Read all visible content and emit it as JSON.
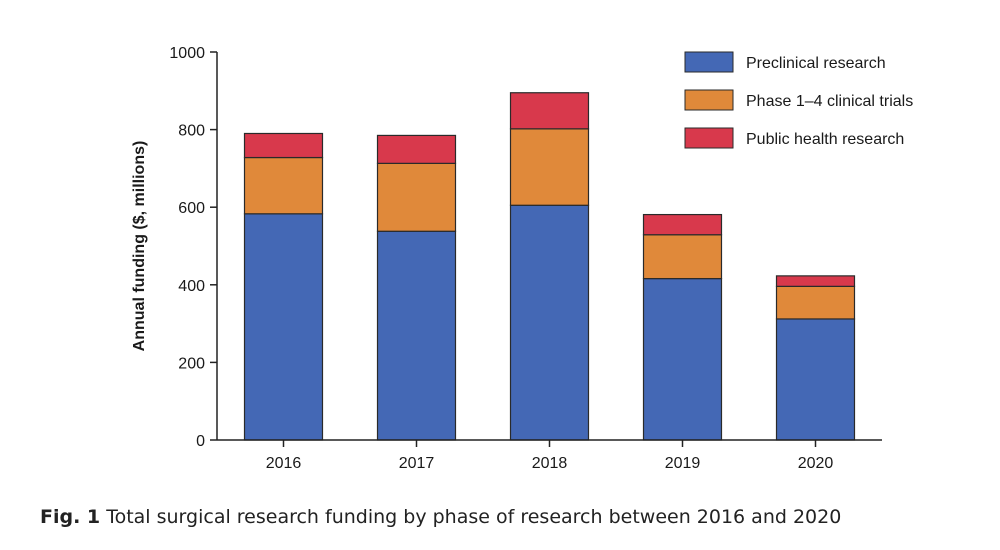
{
  "chart_data": {
    "type": "bar",
    "stacked": true,
    "categories": [
      "2016",
      "2017",
      "2018",
      "2019",
      "2020"
    ],
    "series": [
      {
        "name": "Preclinical research",
        "color": "#4468b5",
        "values": [
          583,
          538,
          605,
          416,
          312
        ]
      },
      {
        "name": "Phase 1–4 clinical trials",
        "color": "#e0893a",
        "values": [
          145,
          175,
          197,
          113,
          84
        ]
      },
      {
        "name": "Public health research",
        "color": "#d8394c",
        "values": [
          62,
          72,
          93,
          52,
          27
        ]
      }
    ],
    "ylabel": "Annual funding ($, millions)",
    "xlabel": "",
    "ylim": [
      0,
      1000
    ],
    "yticks": [
      0,
      200,
      400,
      600,
      800,
      1000
    ],
    "grid": false,
    "legend_position": "top-right"
  },
  "caption": {
    "label": "Fig. 1",
    "text": "Total surgical research funding by phase of research between 2016 and 2020"
  }
}
